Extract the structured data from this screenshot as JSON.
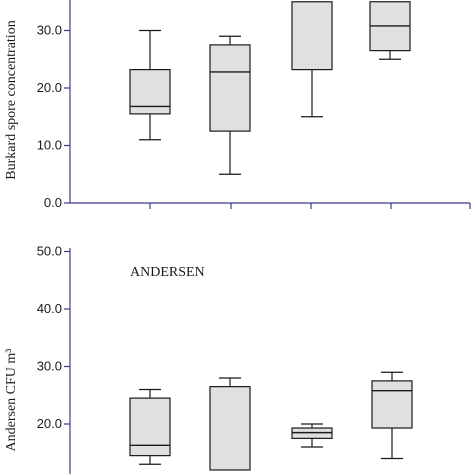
{
  "chart_data": [
    {
      "type": "box",
      "panel": "top",
      "ylabel": "Burkard spore concentration",
      "y_ticks": [
        "0.0",
        "10.0",
        "20.0",
        "30.0"
      ],
      "ylim": [
        0,
        35
      ],
      "boxes": [
        {
          "whisker_low": 11,
          "q1": 15.5,
          "median": 16.8,
          "q3": 23.2,
          "whisker_high": 30
        },
        {
          "whisker_low": 5,
          "q1": 12.5,
          "median": 22.8,
          "q3": 27.5,
          "whisker_high": 29
        },
        {
          "whisker_low": 15,
          "q1": 23.2,
          "median": null,
          "q3": 35,
          "whisker_high": 35
        },
        {
          "whisker_low": 25,
          "q1": 26.5,
          "median": 30.8,
          "q3": 35,
          "whisker_high": 35
        }
      ]
    },
    {
      "type": "box",
      "panel": "bottom",
      "annotation": "ANDERSEN",
      "ylabel": "Andersen CFU m³",
      "y_ticks": [
        "20.0",
        "30.0",
        "40.0",
        "50.0"
      ],
      "ylim": [
        12,
        50
      ],
      "boxes": [
        {
          "whisker_low": 13,
          "q1": 14.5,
          "median": 16.3,
          "q3": 24.5,
          "whisker_high": 26
        },
        {
          "whisker_low": 12,
          "q1": 12,
          "median": null,
          "q3": 26.5,
          "whisker_high": 28
        },
        {
          "whisker_low": 16,
          "q1": 17.5,
          "median": 18.5,
          "q3": 19.3,
          "whisker_high": 20
        },
        {
          "whisker_low": 14,
          "q1": 19.3,
          "median": 25.8,
          "q3": 27.5,
          "whisker_high": 29
        }
      ]
    }
  ],
  "colors": {
    "box_fill": "#e0e0e0",
    "axis": "#3a3a8c",
    "ink": "#1a1a1a"
  }
}
